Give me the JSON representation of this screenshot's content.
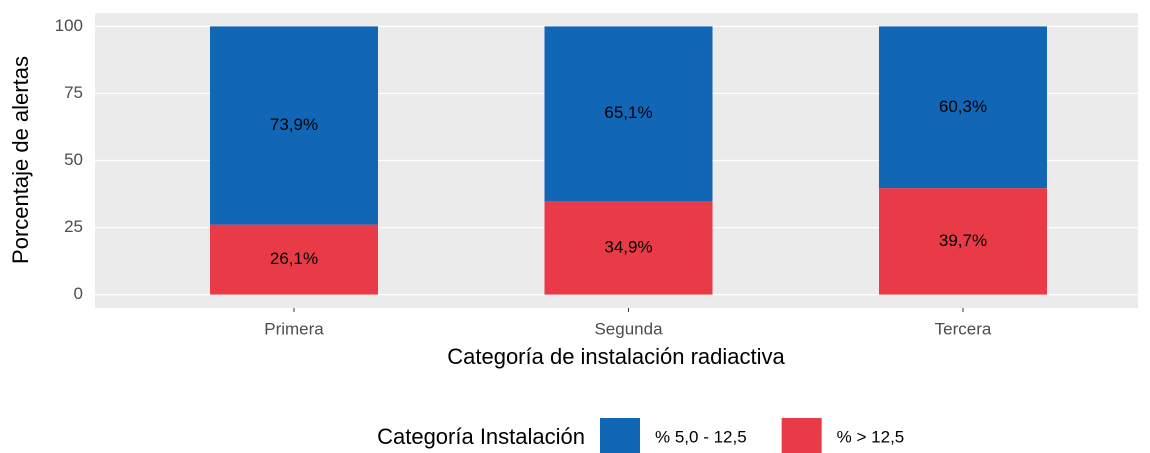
{
  "chart_data": {
    "type": "stacked_bar",
    "x_label": "Categoría de instalación radiactiva",
    "y_label": "Porcentaje de alertas",
    "categories": [
      "Primera",
      "Segunda",
      "Tercera"
    ],
    "series": [
      {
        "name": "% 5,0 - 12,5",
        "color": "#1167b6",
        "values": [
          73.9,
          65.1,
          60.3
        ],
        "value_labels": [
          "73,9%",
          "65,1%",
          "60,3%"
        ]
      },
      {
        "name": "% > 12,5",
        "color": "#e93a48",
        "values": [
          26.1,
          34.9,
          39.7
        ],
        "value_labels": [
          "26,1%",
          "34,9%",
          "39,7%"
        ]
      }
    ],
    "legend_title": "Categoría Instalación",
    "legend_position": "bottom",
    "ylim": [
      -5,
      105
    ],
    "yticks": [
      0,
      25,
      50,
      75,
      100
    ],
    "grid": true
  }
}
